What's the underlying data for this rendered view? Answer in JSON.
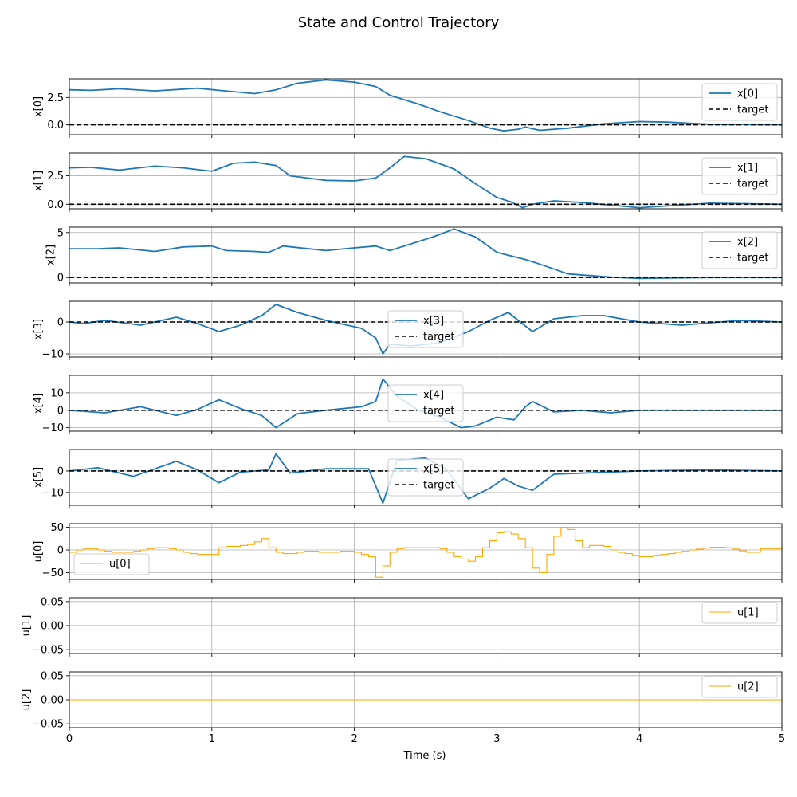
{
  "figure": {
    "title": "State and Control Trajectory",
    "xlabel": "Time (s)",
    "xlim": [
      0,
      5
    ],
    "xticks": [
      0,
      1,
      2,
      3,
      4,
      5
    ],
    "xtick_labels": [
      "0",
      "1",
      "2",
      "3",
      "4",
      "5"
    ],
    "target_label": "target",
    "colors": {
      "state": "#1f77b4",
      "control": "#ffa500",
      "target": "#000000",
      "grid": "#b0b0b0"
    }
  },
  "chart_data": [
    {
      "type": "line",
      "ylabel": "x[0]",
      "legend": "upper right",
      "ylim": [
        -0.9,
        4.2
      ],
      "yticks": [
        0,
        2.5
      ],
      "ytick_labels": [
        "0.0",
        "2.5"
      ],
      "series": [
        {
          "name": "x[0]",
          "kind": "state",
          "x": [
            0,
            0.15,
            0.35,
            0.6,
            0.9,
            1.05,
            1.3,
            1.45,
            1.6,
            1.8,
            2.0,
            2.15,
            2.25,
            2.45,
            2.6,
            2.8,
            2.95,
            3.05,
            3.15,
            3.2,
            3.3,
            3.5,
            3.75,
            4.0,
            4.2,
            4.5,
            5.0
          ],
          "y": [
            3.2,
            3.15,
            3.3,
            3.1,
            3.35,
            3.15,
            2.85,
            3.2,
            3.8,
            4.1,
            3.9,
            3.5,
            2.7,
            1.9,
            1.2,
            0.4,
            -0.3,
            -0.55,
            -0.4,
            -0.2,
            -0.5,
            -0.3,
            0.1,
            0.3,
            0.25,
            0.05,
            0.0
          ]
        },
        {
          "name": "target",
          "kind": "target",
          "x": [
            0,
            5
          ],
          "y": [
            0,
            0
          ]
        }
      ]
    },
    {
      "type": "line",
      "ylabel": "x[1]",
      "legend": "upper right",
      "ylim": [
        -0.4,
        4.5
      ],
      "yticks": [
        0,
        2.5
      ],
      "ytick_labels": [
        "0.0",
        "2.5"
      ],
      "series": [
        {
          "name": "x[1]",
          "kind": "state",
          "x": [
            0,
            0.15,
            0.35,
            0.6,
            0.8,
            1.0,
            1.15,
            1.3,
            1.45,
            1.55,
            1.8,
            2.0,
            2.15,
            2.25,
            2.35,
            2.5,
            2.7,
            2.85,
            3.0,
            3.1,
            3.18,
            3.25,
            3.4,
            3.6,
            4.0,
            4.5,
            5.0
          ],
          "y": [
            3.2,
            3.25,
            3.0,
            3.35,
            3.2,
            2.9,
            3.6,
            3.7,
            3.4,
            2.5,
            2.1,
            2.05,
            2.3,
            3.2,
            4.2,
            4.0,
            3.1,
            1.8,
            0.6,
            0.2,
            -0.3,
            0.0,
            0.3,
            0.15,
            -0.3,
            0.1,
            0.0
          ]
        },
        {
          "name": "target",
          "kind": "target",
          "x": [
            0,
            5
          ],
          "y": [
            0,
            0
          ]
        }
      ]
    },
    {
      "type": "line",
      "ylabel": "x[2]",
      "legend": "upper right",
      "ylim": [
        -0.6,
        5.6
      ],
      "yticks": [
        0,
        5
      ],
      "ytick_labels": [
        "0",
        "5"
      ],
      "series": [
        {
          "name": "x[2]",
          "kind": "state",
          "x": [
            0,
            0.2,
            0.35,
            0.6,
            0.8,
            1.0,
            1.1,
            1.3,
            1.4,
            1.5,
            1.8,
            2.0,
            2.15,
            2.25,
            2.35,
            2.55,
            2.7,
            2.85,
            3.0,
            3.2,
            3.3,
            3.5,
            3.8,
            4.0,
            4.5,
            5.0
          ],
          "y": [
            3.2,
            3.2,
            3.3,
            2.9,
            3.4,
            3.5,
            3.0,
            2.9,
            2.8,
            3.5,
            3.0,
            3.3,
            3.5,
            3.0,
            3.5,
            4.5,
            5.4,
            4.5,
            2.8,
            2.0,
            1.5,
            0.4,
            0.05,
            -0.1,
            0.0,
            0.0
          ]
        },
        {
          "name": "target",
          "kind": "target",
          "x": [
            0,
            5
          ],
          "y": [
            0,
            0
          ]
        }
      ]
    },
    {
      "type": "line",
      "ylabel": "x[3]",
      "legend": "center",
      "ylim": [
        -11,
        6.5
      ],
      "yticks": [
        -10,
        0
      ],
      "ytick_labels": [
        "−10",
        "0"
      ],
      "series": [
        {
          "name": "x[3]",
          "kind": "state",
          "x": [
            0,
            0.1,
            0.25,
            0.5,
            0.75,
            0.9,
            1.05,
            1.2,
            1.35,
            1.45,
            1.6,
            1.8,
            2.05,
            2.15,
            2.2,
            2.25,
            2.4,
            2.6,
            2.8,
            2.95,
            3.08,
            3.15,
            3.25,
            3.4,
            3.6,
            3.75,
            4.0,
            4.3,
            4.7,
            5.0
          ],
          "y": [
            0,
            -0.5,
            0.5,
            -1.0,
            1.5,
            -0.5,
            -3.0,
            -1.0,
            2.0,
            5.5,
            3.0,
            0.5,
            -2.0,
            -5.0,
            -10.0,
            -7.0,
            -7.5,
            -6.5,
            -3.0,
            0.5,
            3.0,
            0.5,
            -3.0,
            1.0,
            2.0,
            2.0,
            0.0,
            -1.0,
            0.5,
            0.0
          ]
        },
        {
          "name": "target",
          "kind": "target",
          "x": [
            0,
            5
          ],
          "y": [
            0,
            0
          ]
        }
      ]
    },
    {
      "type": "line",
      "ylabel": "x[4]",
      "legend": "center",
      "ylim": [
        -12,
        20
      ],
      "yticks": [
        -10,
        0,
        10
      ],
      "ytick_labels": [
        "−10",
        "0",
        "10"
      ],
      "series": [
        {
          "name": "x[4]",
          "kind": "state",
          "x": [
            0,
            0.25,
            0.5,
            0.75,
            0.9,
            1.05,
            1.2,
            1.35,
            1.45,
            1.6,
            1.8,
            2.05,
            2.15,
            2.2,
            2.3,
            2.45,
            2.6,
            2.75,
            2.85,
            3.0,
            3.12,
            3.2,
            3.25,
            3.4,
            3.6,
            3.8,
            4.0,
            4.5,
            5.0
          ],
          "y": [
            0,
            -1.5,
            2.0,
            -3.0,
            0.5,
            6.0,
            1.0,
            -3.0,
            -10.0,
            -2.0,
            0.0,
            2.0,
            5.0,
            18.0,
            8.0,
            0.0,
            -4.0,
            -10.0,
            -9.0,
            -4.0,
            -5.5,
            2.0,
            5.0,
            -1.0,
            0.0,
            -1.5,
            0.0,
            0.0,
            0.0
          ]
        },
        {
          "name": "target",
          "kind": "target",
          "x": [
            0,
            5
          ],
          "y": [
            0,
            0
          ]
        }
      ]
    },
    {
      "type": "line",
      "ylabel": "x[5]",
      "legend": "center",
      "ylim": [
        -16,
        10
      ],
      "yticks": [
        -10,
        0
      ],
      "ytick_labels": [
        "−10",
        "0"
      ],
      "series": [
        {
          "name": "x[5]",
          "kind": "state",
          "x": [
            0,
            0.2,
            0.45,
            0.75,
            0.9,
            1.05,
            1.2,
            1.4,
            1.45,
            1.55,
            1.8,
            2.1,
            2.2,
            2.3,
            2.5,
            2.65,
            2.8,
            2.95,
            3.05,
            3.15,
            3.25,
            3.4,
            3.6,
            4.0,
            4.5,
            5.0
          ],
          "y": [
            0,
            1.5,
            -2.5,
            4.5,
            0.5,
            -5.5,
            -0.5,
            0.5,
            8.0,
            -1.0,
            1.0,
            1.0,
            -15.0,
            5.0,
            6.0,
            0.5,
            -13.0,
            -8.0,
            -3.5,
            -7.0,
            -9.0,
            -1.5,
            -1.0,
            0.0,
            0.5,
            0.0
          ]
        },
        {
          "name": "target",
          "kind": "target",
          "x": [
            0,
            5
          ],
          "y": [
            0,
            0
          ]
        }
      ]
    },
    {
      "type": "line",
      "ylabel": "u[0]",
      "legend": "lower left",
      "ylim": [
        -65,
        58
      ],
      "yticks": [
        -50,
        0,
        50
      ],
      "ytick_labels": [
        "−50",
        "0",
        "50"
      ],
      "series": [
        {
          "name": "u[0]",
          "kind": "control",
          "step": true,
          "dt": 0.05,
          "y": [
            -5,
            0,
            3,
            3,
            0,
            -3,
            -5,
            -5,
            -5,
            -3,
            0,
            3,
            5,
            5,
            3,
            0,
            -5,
            -8,
            -10,
            -10,
            -10,
            5,
            8,
            8,
            10,
            12,
            18,
            25,
            5,
            -5,
            -8,
            -8,
            -5,
            -3,
            -3,
            -5,
            -5,
            -5,
            -3,
            -3,
            -5,
            -10,
            -15,
            -60,
            -35,
            -5,
            3,
            5,
            5,
            5,
            5,
            5,
            3,
            -5,
            -15,
            -20,
            -25,
            -15,
            5,
            20,
            38,
            40,
            35,
            25,
            5,
            -40,
            -50,
            -10,
            30,
            50,
            45,
            20,
            5,
            10,
            10,
            8,
            0,
            -5,
            -8,
            -12,
            -15,
            -15,
            -12,
            -10,
            -8,
            -5,
            -3,
            0,
            2,
            4,
            6,
            6,
            5,
            2,
            -2,
            -5,
            -5,
            3,
            3,
            3
          ]
        }
      ]
    },
    {
      "type": "line",
      "ylabel": "u[1]",
      "legend": "upper right",
      "ylim": [
        -0.058,
        0.058
      ],
      "yticks": [
        -0.05,
        0,
        0.05
      ],
      "ytick_labels": [
        "−0.05",
        "0.00",
        "0.05"
      ],
      "series": [
        {
          "name": "u[1]",
          "kind": "control",
          "x": [
            0,
            5
          ],
          "y": [
            0,
            0
          ]
        }
      ]
    },
    {
      "type": "line",
      "ylabel": "u[2]",
      "legend": "upper right",
      "ylim": [
        -0.058,
        0.058
      ],
      "yticks": [
        -0.05,
        0,
        0.05
      ],
      "ytick_labels": [
        "−0.05",
        "0.00",
        "0.05"
      ],
      "series": [
        {
          "name": "u[2]",
          "kind": "control",
          "x": [
            0,
            5
          ],
          "y": [
            0,
            0
          ]
        }
      ]
    }
  ]
}
